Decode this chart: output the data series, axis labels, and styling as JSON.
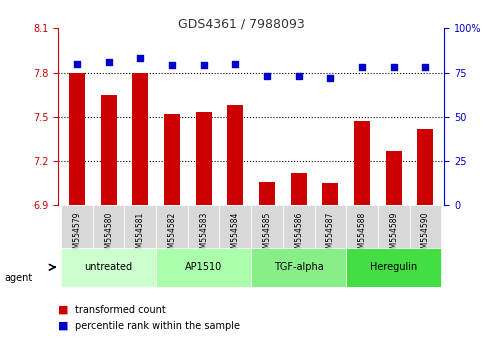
{
  "title": "GDS4361 / 7988093",
  "samples": [
    "GSM554579",
    "GSM554580",
    "GSM554581",
    "GSM554582",
    "GSM554583",
    "GSM554584",
    "GSM554585",
    "GSM554586",
    "GSM554587",
    "GSM554588",
    "GSM554589",
    "GSM554590"
  ],
  "bar_values": [
    7.8,
    7.65,
    7.8,
    7.52,
    7.53,
    7.58,
    7.06,
    7.12,
    7.05,
    7.47,
    7.27,
    7.42
  ],
  "percentile_values": [
    80,
    81,
    83,
    79,
    79,
    80,
    73,
    73,
    72,
    78,
    78,
    78
  ],
  "bar_color": "#cc0000",
  "percentile_color": "#0000cc",
  "ylim_left": [
    6.9,
    8.1
  ],
  "ylim_right": [
    0,
    100
  ],
  "yticks_left": [
    6.9,
    7.2,
    7.5,
    7.8,
    8.1
  ],
  "yticks_right": [
    0,
    25,
    50,
    75,
    100
  ],
  "ytick_labels_left": [
    "6.9",
    "7.2",
    "7.5",
    "7.8",
    "8.1"
  ],
  "ytick_labels_right": [
    "0",
    "25",
    "50",
    "75",
    "100%"
  ],
  "hlines": [
    7.2,
    7.5,
    7.8
  ],
  "agent_groups": [
    {
      "label": "untreated",
      "start": 0,
      "end": 3,
      "color": "#ccffcc"
    },
    {
      "label": "AP1510",
      "start": 3,
      "end": 6,
      "color": "#aaffaa"
    },
    {
      "label": "TGF-alpha",
      "start": 6,
      "end": 9,
      "color": "#88ee88"
    },
    {
      "label": "Heregulin",
      "start": 9,
      "end": 12,
      "color": "#44dd44"
    }
  ],
  "xlabel_agent": "agent",
  "legend_bar_label": "transformed count",
  "legend_pct_label": "percentile rank within the sample",
  "bar_width": 0.5,
  "background_color": "#ffffff",
  "plot_bg_color": "#ffffff",
  "tick_label_color_left": "#cc0000",
  "tick_label_color_right": "#0000cc",
  "title_color": "#333333"
}
